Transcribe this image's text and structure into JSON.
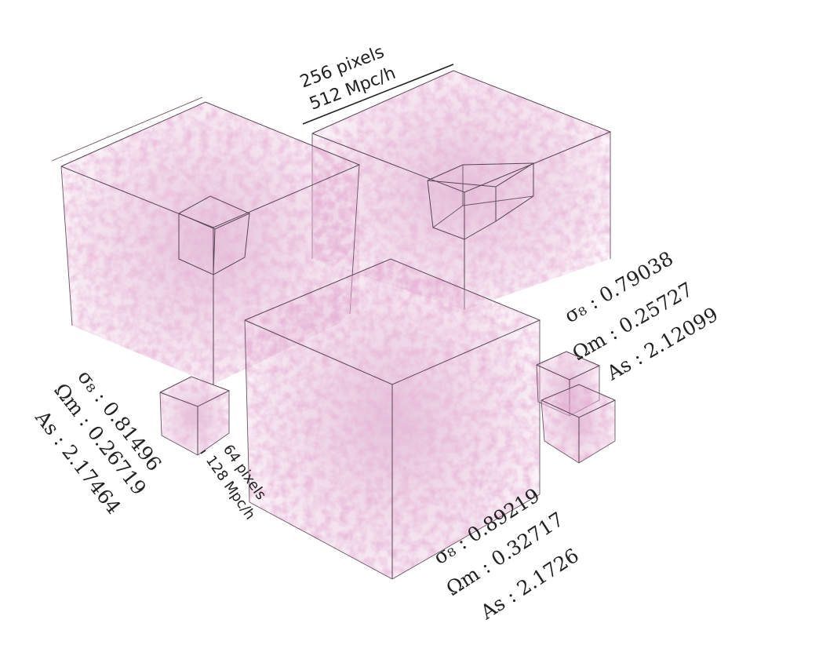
{
  "scale_large": {
    "pixels": "256 pixels",
    "size": "512 Mpc/h"
  },
  "scale_small": {
    "pixels": "64 pixels",
    "size": "128 Mpc/h"
  },
  "params_left": {
    "sigma8": "σ₈ : 0.81496",
    "omega_m": "Ωm : 0.26719",
    "a_s": "As : 2.17464"
  },
  "params_right": {
    "sigma8": "σ₈ : 0.79038",
    "omega_m": "Ωm : 0.25727",
    "a_s": "As : 2.12099"
  },
  "params_front": {
    "sigma8": "σ₈ : 0.89219",
    "omega_m": "Ωm : 0.32717",
    "a_s": "As : 2.1726"
  },
  "colors": {
    "density": "#d9a0c4",
    "density_dense": "#c985b3",
    "edge": "#5a4454"
  }
}
